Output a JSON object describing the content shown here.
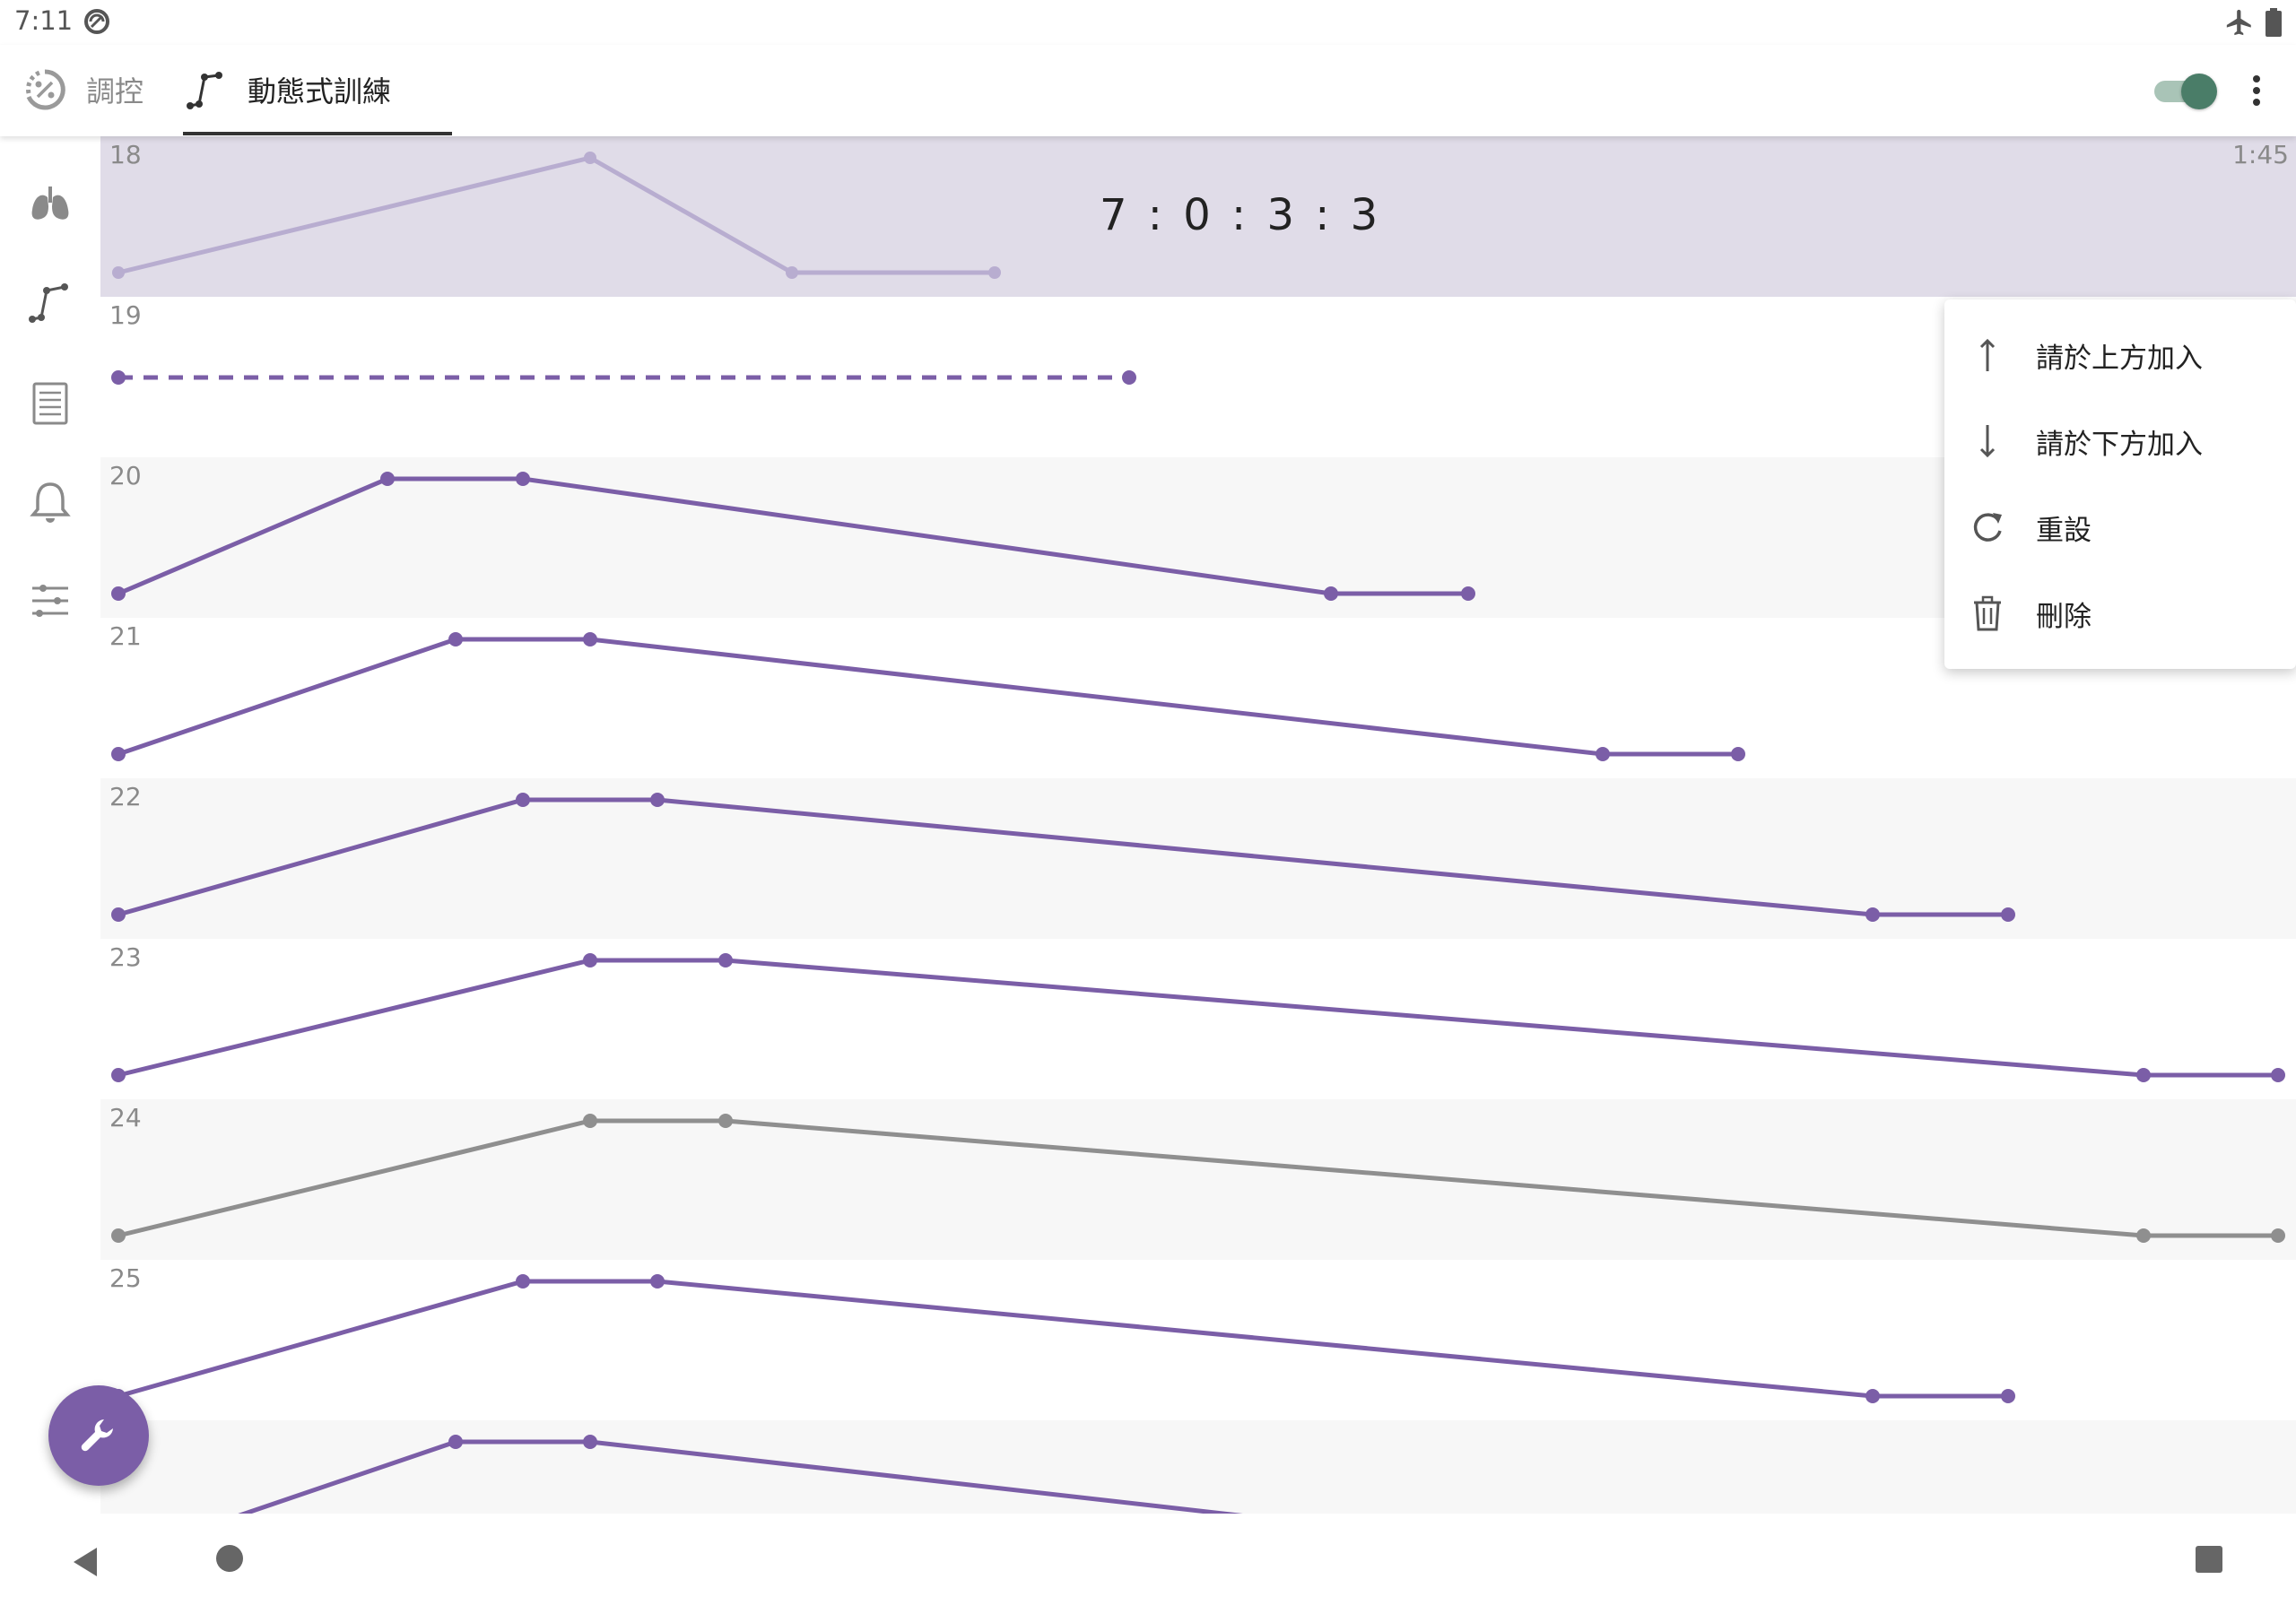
{
  "status_bar": {
    "time": "7:11"
  },
  "app_bar": {
    "tabs": [
      {
        "label": "調控",
        "icon": "percent-dial-icon"
      },
      {
        "label": "動態式訓練",
        "icon": "line-graph-icon"
      }
    ],
    "selected_tab": 1,
    "toggle_on": true
  },
  "rail": {
    "items": [
      "lungs-icon",
      "line-graph-icon",
      "list-icon",
      "bell-icon",
      "sliders-icon"
    ]
  },
  "rows": [
    {
      "number": "18",
      "pattern": "7 : 0 : 3 : 3",
      "duration": "1:45",
      "selected": true
    },
    {
      "number": "19"
    },
    {
      "number": "20"
    },
    {
      "number": "21"
    },
    {
      "number": "22"
    },
    {
      "number": "23"
    },
    {
      "number": "24"
    },
    {
      "number": "25"
    },
    {
      "number": ""
    }
  ],
  "context_menu": {
    "items": [
      {
        "label": "請於上方加入",
        "icon": "arrow-up-icon"
      },
      {
        "label": "請於下方加入",
        "icon": "arrow-down-icon"
      },
      {
        "label": "重設",
        "icon": "refresh-icon"
      },
      {
        "label": "刪除",
        "icon": "trash-icon"
      }
    ]
  },
  "fab": {
    "icon": "wrench-icon"
  },
  "colors": {
    "accent": "#7b5ea7",
    "selected_row_bg": "#e0dce8",
    "selected_line": "#b8add0",
    "inactive_line": "#8f8f8f",
    "toggle": "#4a7d68"
  }
}
